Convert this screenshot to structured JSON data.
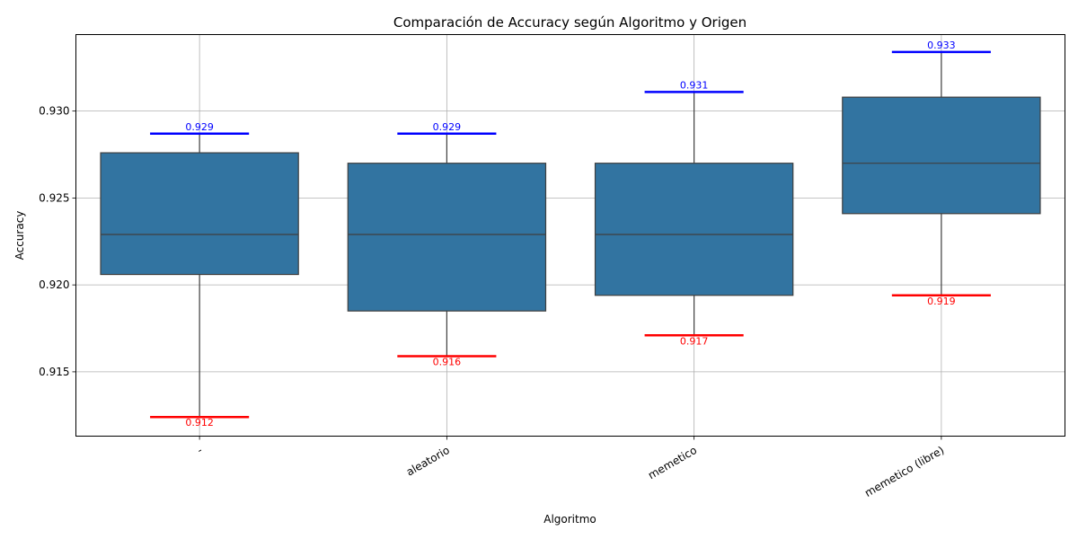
{
  "chart_data": {
    "type": "boxplot",
    "title": "Comparación de Accuracy según Algoritmo y Origen",
    "xlabel": "Algoritmo",
    "ylabel": "Accuracy",
    "ylim": [
      0.9113,
      0.9344
    ],
    "yticks": [
      0.915,
      0.92,
      0.925,
      0.93
    ],
    "ytick_labels": [
      "0.915",
      "0.920",
      "0.925",
      "0.930"
    ],
    "grid": true,
    "box_color": "#3274a1",
    "max_line_color": "#0000ff",
    "min_line_color": "#ff0000",
    "categories": [
      "-",
      "aleatorio",
      "memetico",
      "memetico (libre)"
    ],
    "boxes": [
      {
        "category": "-",
        "min": 0.9124,
        "q1": 0.9206,
        "median": 0.9229,
        "q3": 0.9276,
        "max": 0.9287,
        "max_label": "0.929",
        "min_label": "0.912"
      },
      {
        "category": "aleatorio",
        "min": 0.9159,
        "q1": 0.9185,
        "median": 0.9229,
        "q3": 0.927,
        "max": 0.9287,
        "max_label": "0.929",
        "min_label": "0.916"
      },
      {
        "category": "memetico",
        "min": 0.9171,
        "q1": 0.9194,
        "median": 0.9229,
        "q3": 0.927,
        "max": 0.9311,
        "max_label": "0.931",
        "min_label": "0.917"
      },
      {
        "category": "memetico (libre)",
        "min": 0.9194,
        "q1": 0.9241,
        "median": 0.927,
        "q3": 0.9308,
        "max": 0.9334,
        "max_label": "0.933",
        "min_label": "0.919"
      }
    ]
  }
}
